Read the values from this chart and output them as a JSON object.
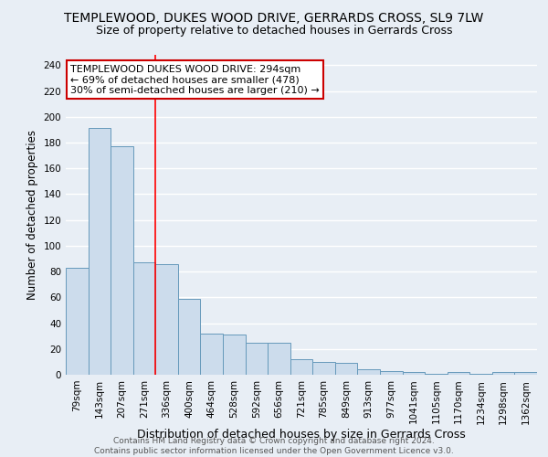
{
  "title": "TEMPLEWOOD, DUKES WOOD DRIVE, GERRARDS CROSS, SL9 7LW",
  "subtitle": "Size of property relative to detached houses in Gerrards Cross",
  "xlabel": "Distribution of detached houses by size in Gerrards Cross",
  "ylabel": "Number of detached properties",
  "categories": [
    "79sqm",
    "143sqm",
    "207sqm",
    "271sqm",
    "336sqm",
    "400sqm",
    "464sqm",
    "528sqm",
    "592sqm",
    "656sqm",
    "721sqm",
    "785sqm",
    "849sqm",
    "913sqm",
    "977sqm",
    "1041sqm",
    "1105sqm",
    "1170sqm",
    "1234sqm",
    "1298sqm",
    "1362sqm"
  ],
  "values": [
    83,
    191,
    177,
    87,
    86,
    59,
    32,
    31,
    25,
    25,
    12,
    10,
    9,
    4,
    3,
    2,
    1,
    2,
    1,
    2,
    2
  ],
  "bar_color": "#ccdcec",
  "bar_edge_color": "#6699bb",
  "annotation_text": "TEMPLEWOOD DUKES WOOD DRIVE: 294sqm\n← 69% of detached houses are smaller (478)\n30% of semi-detached houses are larger (210) →",
  "annotation_box_color": "#ffffff",
  "annotation_box_edge_color": "#cc0000",
  "red_line_x": 3.5,
  "ylim": [
    0,
    248
  ],
  "yticks": [
    0,
    20,
    40,
    60,
    80,
    100,
    120,
    140,
    160,
    180,
    200,
    220,
    240
  ],
  "background_color": "#e8eef5",
  "grid_color": "#ffffff",
  "footer": "Contains HM Land Registry data © Crown copyright and database right 2024.\nContains public sector information licensed under the Open Government Licence v3.0.",
  "title_fontsize": 10,
  "subtitle_fontsize": 9,
  "xlabel_fontsize": 9,
  "ylabel_fontsize": 8.5,
  "tick_fontsize": 7.5,
  "annotation_fontsize": 8,
  "footer_fontsize": 6.5
}
